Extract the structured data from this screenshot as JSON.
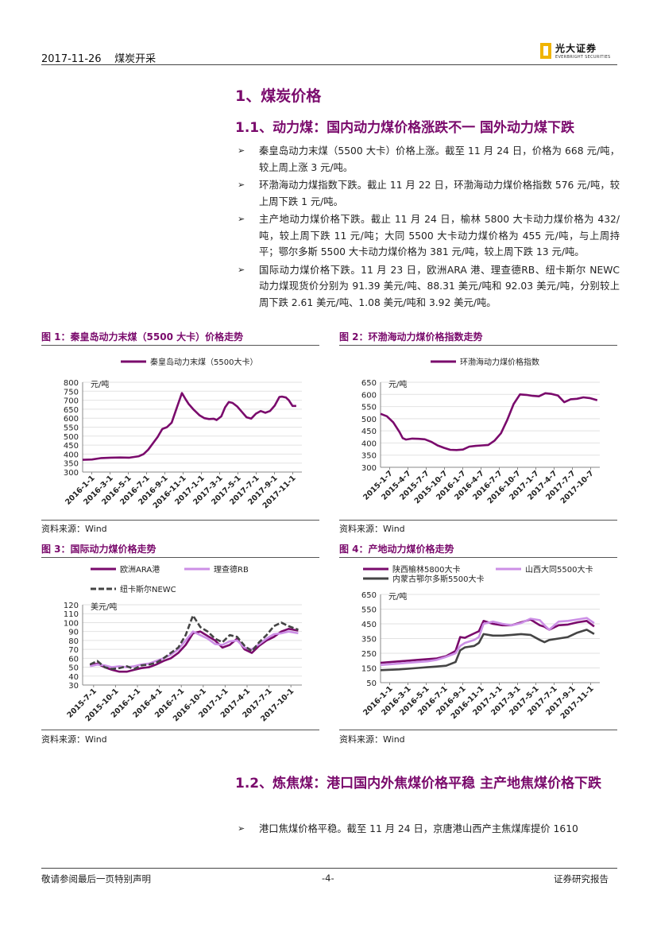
{
  "header": {
    "date": "2017-11-26",
    "section": "煤炭开采",
    "logo_cn": "光大证券",
    "logo_en": "EVERBRIGHT SECURITIES"
  },
  "title": "1、煤炭价格",
  "subtitle1": "1.1、动力煤：国内动力煤价格涨跌不一 国外动力煤下跌",
  "bullets": [
    "秦皇岛动力末煤（5500 大卡）价格上涨。截至 11 月 24 日，价格为 668 元/吨，较上周上涨 3 元/吨。",
    "环渤海动力煤指数下跌。截止 11 月 22 日，环渤海动力煤价格指数 576 元/吨，较上周下跌 1 元/吨。",
    "主产地动力煤价格下跌。截止 11 月 24 日，榆林 5800 大卡动力煤价格为 432/吨，较上周下跌 11 元/吨；大同 5500 大卡动力煤价格为 455 元/吨，与上周持平；鄂尔多斯 5500 大卡动力煤价格为 381 元/吨，较上周下跌 13 元/吨。",
    "国际动力煤价格下跌。11 月 23 日，欧洲ARA 港、理查德RB、纽卡斯尔 NEWC 动力煤现货价分别为 91.39 美元/吨、88.31 美元/吨和 92.03 美元/吨，分别较上周下跌 2.61 美元/吨、1.08 美元/吨和 3.92 美元/吨。"
  ],
  "subtitle2": "1.2、炼焦煤：港口国内外焦煤价格平稳 主产地焦煤价格下跌",
  "bullet_last": "港口焦煤价格平稳。截至 11 月 24 日，京唐港山西产主焦煤库提价 1610",
  "arrow": "➢",
  "source_text": "资料来源：Wind",
  "footer": {
    "left": "敬请参阅最后一页特别声明",
    "page": "-4-",
    "right": "证券研究报告"
  },
  "chart_data": [
    {
      "type": "line",
      "figure_label": "图 1：秦皇岛动力末煤（5500 大卡）价格走势",
      "unit": "元/吨",
      "ylim": [
        300,
        800
      ],
      "yticks": [
        300,
        350,
        400,
        450,
        500,
        550,
        600,
        650,
        700,
        750,
        800
      ],
      "xticks": [
        "2016-1-1",
        "2016-3-1",
        "2016-5-1",
        "2016-7-1",
        "2016-9-1",
        "2016-11-1",
        "2017-1-1",
        "2017-3-1",
        "2017-5-1",
        "2017-7-1",
        "2017-9-1",
        "2017-11-1"
      ],
      "xlim": [
        0,
        23.4
      ],
      "grid": true,
      "legend": "top",
      "series": [
        {
          "name": "秦皇岛动力末煤（5500大卡）",
          "color": "#7a0a6c",
          "x": [
            0,
            1,
            2,
            3,
            4,
            5,
            6,
            6.5,
            7,
            8,
            8.5,
            9,
            9.5,
            10,
            10.6,
            11,
            11.3,
            11.8,
            12.5,
            13,
            13.5,
            14,
            14.3,
            14.8,
            15.2,
            15.6,
            16,
            16.5,
            17,
            17.5,
            18,
            18.5,
            19,
            19.5,
            20,
            20.5,
            21,
            21.3,
            21.7,
            22,
            22.4,
            22.8
          ],
          "y": [
            368,
            370,
            378,
            380,
            381,
            380,
            388,
            400,
            425,
            495,
            540,
            550,
            575,
            650,
            740,
            705,
            680,
            650,
            615,
            600,
            595,
            597,
            590,
            610,
            660,
            690,
            685,
            665,
            635,
            605,
            598,
            625,
            640,
            630,
            640,
            670,
            718,
            720,
            715,
            700,
            668,
            668
          ]
        }
      ]
    },
    {
      "type": "line",
      "figure_label": "图 2：环渤海动力煤价格指数走势",
      "unit": "元/吨",
      "ylim": [
        300,
        650
      ],
      "yticks": [
        300,
        350,
        400,
        450,
        500,
        550,
        600,
        650
      ],
      "xticks": [
        "2015-1-7",
        "2015-4-7",
        "2015-7-7",
        "2015-10-7",
        "2016-1-7",
        "2016-4-7",
        "2016-7-7",
        "2016-10-7",
        "2017-1-7",
        "2017-4-7",
        "2017-7-7",
        "2017-10-7"
      ],
      "xlim": [
        0,
        34.6
      ],
      "grid": true,
      "legend": "top",
      "series": [
        {
          "name": "环渤海动力煤价格指数",
          "color": "#7a0a6c",
          "x": [
            0,
            1,
            2,
            3,
            3.5,
            4,
            5,
            6,
            7,
            8,
            9,
            10,
            11,
            12,
            13,
            14,
            15,
            16,
            17,
            18,
            19,
            20,
            21,
            22,
            23,
            24,
            25,
            26,
            27,
            28,
            29,
            30,
            31,
            32,
            33,
            34.2
          ],
          "y": [
            520,
            510,
            485,
            445,
            420,
            414,
            418,
            417,
            415,
            405,
            390,
            380,
            372,
            371,
            373,
            385,
            388,
            390,
            392,
            410,
            440,
            495,
            560,
            600,
            598,
            594,
            592,
            605,
            602,
            595,
            568,
            580,
            582,
            588,
            585,
            576
          ]
        }
      ]
    },
    {
      "type": "line",
      "figure_label": "图 3：国际动力煤价格走势",
      "unit": "美元/吨",
      "ylim": [
        30,
        120
      ],
      "yticks": [
        30,
        40,
        50,
        60,
        70,
        80,
        90,
        100,
        110,
        120
      ],
      "xticks": [
        "2015-7-1",
        "2015-10-1",
        "2016-1-1",
        "2016-4-1",
        "2016-7-1",
        "2016-10-1",
        "2017-1-1",
        "2017-4-1",
        "2017-7-1",
        "2017-10-1"
      ],
      "xlim": [
        0,
        29.8
      ],
      "grid": true,
      "legend": "top",
      "series": [
        {
          "name": "欧洲ARA港",
          "color": "#7a0a6c",
          "x": [
            1,
            2,
            3,
            4,
            5,
            6,
            7,
            8,
            9,
            10,
            11,
            12,
            13,
            14,
            15,
            16,
            17,
            18,
            19,
            20,
            21,
            22,
            23,
            24,
            25,
            26,
            27,
            28,
            29.3
          ],
          "y": [
            52,
            54,
            50,
            47,
            45,
            45,
            47,
            49,
            50,
            53,
            57,
            60,
            66,
            75,
            88,
            90,
            85,
            80,
            72,
            75,
            82,
            70,
            66,
            74,
            80,
            84,
            90,
            93,
            91
          ]
        },
        {
          "name": "理查德RB",
          "color": "#cc8fe6",
          "x": [
            1,
            2,
            3,
            4,
            5,
            6,
            7,
            8,
            9,
            10,
            11,
            12,
            13,
            14,
            15,
            16,
            17,
            18,
            19,
            20,
            21,
            22,
            23,
            24,
            25,
            26,
            27,
            28,
            29.3
          ],
          "y": [
            51,
            53,
            52,
            50,
            51,
            50,
            51,
            53,
            54,
            57,
            60,
            64,
            70,
            80,
            90,
            86,
            82,
            76,
            75,
            79,
            80,
            72,
            70,
            76,
            82,
            87,
            88,
            90,
            88
          ]
        },
        {
          "name": "纽卡斯尔NEWC",
          "color": "#444444",
          "x": [
            1,
            2,
            3,
            4,
            5,
            6,
            7,
            8,
            9,
            10,
            11,
            12,
            13,
            14,
            15,
            16,
            17,
            18,
            19,
            20,
            21,
            22,
            23,
            24,
            25,
            26,
            27,
            28,
            29.3
          ],
          "y": [
            53,
            57,
            50,
            48,
            49,
            51,
            48,
            52,
            53,
            55,
            60,
            66,
            72,
            86,
            108,
            95,
            90,
            82,
            78,
            86,
            84,
            74,
            68,
            78,
            86,
            96,
            100,
            96,
            92
          ]
        }
      ]
    },
    {
      "type": "line",
      "figure_label": "图 4：产地动力煤价格走势",
      "unit": "元/吨",
      "ylim": [
        50,
        650
      ],
      "yticks": [
        50,
        150,
        250,
        350,
        450,
        550,
        650
      ],
      "xticks": [
        "2016-1-1",
        "2016-3-1",
        "2016-5-1",
        "2016-7-1",
        "2016-9-1",
        "2016-11-1",
        "2017-1-1",
        "2017-3-1",
        "2017-5-1",
        "2017-7-1",
        "2017-9-1",
        "2017-11-1"
      ],
      "xlim": [
        0,
        23.4
      ],
      "grid": true,
      "legend": "top",
      "series": [
        {
          "name": "陕西榆林5800大卡",
          "color": "#7a0a6c",
          "x": [
            0,
            2,
            4,
            5,
            6,
            7,
            8,
            8.5,
            9,
            10,
            10.5,
            11,
            12,
            13,
            14,
            15,
            16,
            17,
            17.5,
            18,
            19,
            20,
            21,
            22,
            22.8
          ],
          "y": [
            185,
            195,
            205,
            210,
            215,
            230,
            265,
            360,
            355,
            385,
            400,
            470,
            450,
            440,
            440,
            460,
            480,
            440,
            430,
            410,
            440,
            445,
            460,
            470,
            432
          ]
        },
        {
          "name": "山西大同5500大卡",
          "color": "#cc8fe6",
          "x": [
            0,
            2,
            4,
            5,
            6,
            7,
            8,
            8.5,
            9,
            10,
            10.5,
            11,
            12,
            13,
            14,
            15,
            16,
            17,
            17.5,
            18,
            19,
            20,
            21,
            22,
            22.8
          ],
          "y": [
            170,
            180,
            190,
            195,
            205,
            225,
            250,
            300,
            320,
            340,
            360,
            450,
            465,
            450,
            440,
            455,
            485,
            475,
            440,
            410,
            465,
            470,
            480,
            490,
            455
          ]
        },
        {
          "name": "内蒙古鄂尔多斯5500大卡",
          "color": "#444444",
          "x": [
            0,
            2,
            4,
            5,
            6,
            7,
            8,
            8.5,
            9,
            10,
            10.5,
            11,
            12,
            13,
            14,
            15,
            16,
            17,
            17.5,
            18,
            19,
            20,
            21,
            22,
            22.8
          ],
          "y": [
            135,
            140,
            150,
            155,
            160,
            165,
            190,
            270,
            290,
            300,
            320,
            380,
            370,
            370,
            375,
            380,
            375,
            340,
            325,
            340,
            350,
            360,
            390,
            410,
            381
          ]
        }
      ]
    }
  ]
}
